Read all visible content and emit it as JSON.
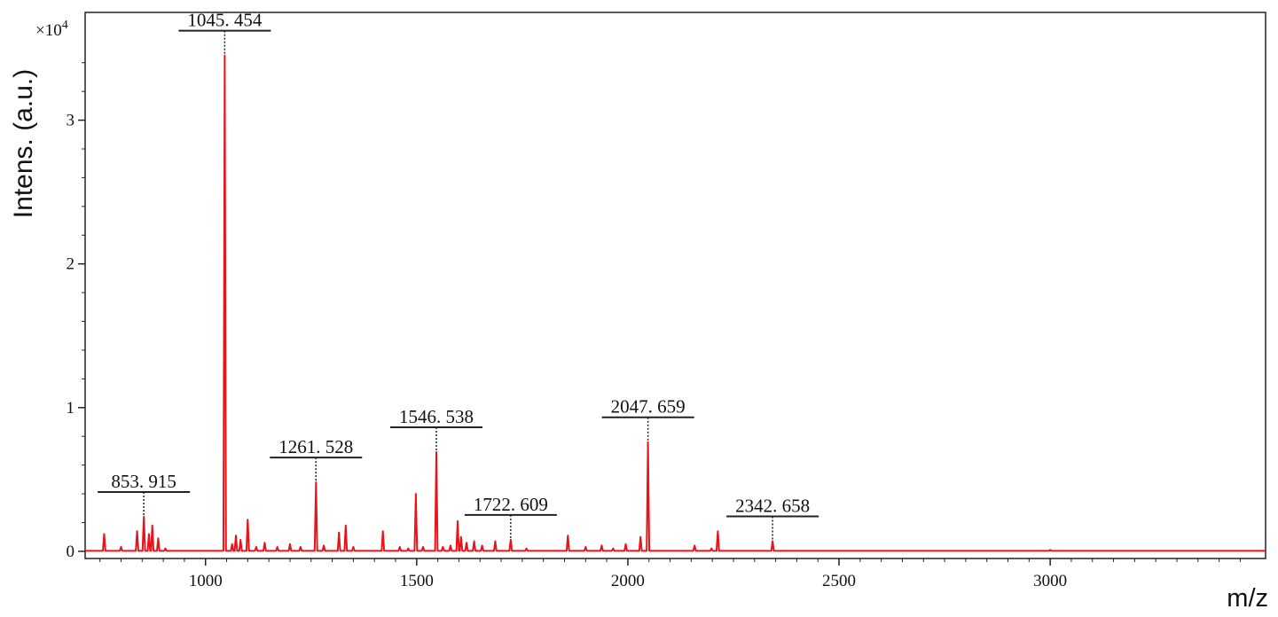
{
  "chart_data": {
    "type": "line",
    "xlabel": "m/z",
    "ylabel": "Intens. (a.u.)",
    "y_multiplier": "×10",
    "y_multiplier_exp": "4",
    "xlim": [
      715,
      3510
    ],
    "ylim": [
      -0.05,
      3.75
    ],
    "xticks": [
      1000,
      1500,
      2000,
      2500,
      3000
    ],
    "yticks": [
      0,
      1,
      2,
      3
    ],
    "series_color": "#e8141b",
    "series": [
      {
        "peaks": [
          [
            760,
            0.12
          ],
          [
            800,
            0.03
          ],
          [
            838,
            0.14
          ],
          [
            853.915,
            0.24
          ],
          [
            866,
            0.12
          ],
          [
            874,
            0.18
          ],
          [
            888,
            0.09
          ],
          [
            905,
            0.02
          ],
          [
            1045.454,
            3.45
          ],
          [
            1063,
            0.05
          ],
          [
            1072,
            0.11
          ],
          [
            1083,
            0.08
          ],
          [
            1100,
            0.22
          ],
          [
            1120,
            0.03
          ],
          [
            1140,
            0.06
          ],
          [
            1170,
            0.03
          ],
          [
            1200,
            0.05
          ],
          [
            1225,
            0.03
          ],
          [
            1261.528,
            0.48
          ],
          [
            1280,
            0.04
          ],
          [
            1316,
            0.13
          ],
          [
            1332,
            0.18
          ],
          [
            1350,
            0.03
          ],
          [
            1420,
            0.14
          ],
          [
            1460,
            0.03
          ],
          [
            1480,
            0.02
          ],
          [
            1498,
            0.4
          ],
          [
            1515,
            0.03
          ],
          [
            1546.538,
            0.69
          ],
          [
            1562,
            0.03
          ],
          [
            1580,
            0.04
          ],
          [
            1597,
            0.21
          ],
          [
            1605,
            0.1
          ],
          [
            1618,
            0.06
          ],
          [
            1636,
            0.07
          ],
          [
            1655,
            0.04
          ],
          [
            1686,
            0.07
          ],
          [
            1722.609,
            0.08
          ],
          [
            1760,
            0.02
          ],
          [
            1858,
            0.11
          ],
          [
            1900,
            0.03
          ],
          [
            1938,
            0.04
          ],
          [
            1965,
            0.02
          ],
          [
            1995,
            0.05
          ],
          [
            2030,
            0.1
          ],
          [
            2047.659,
            0.76
          ],
          [
            2158,
            0.04
          ],
          [
            2198,
            0.02
          ],
          [
            2213,
            0.14
          ],
          [
            2342.658,
            0.07
          ],
          [
            3000,
            0.01
          ]
        ]
      }
    ],
    "labels": [
      "853. 915",
      "1045. 454",
      "1261. 528",
      "1546. 538",
      "1722. 609",
      "2047. 659",
      "2342. 658"
    ],
    "label_mz": [
      853.915,
      1045.454,
      1261.528,
      1546.538,
      1722.609,
      2047.659,
      2342.658
    ],
    "grid": false
  }
}
